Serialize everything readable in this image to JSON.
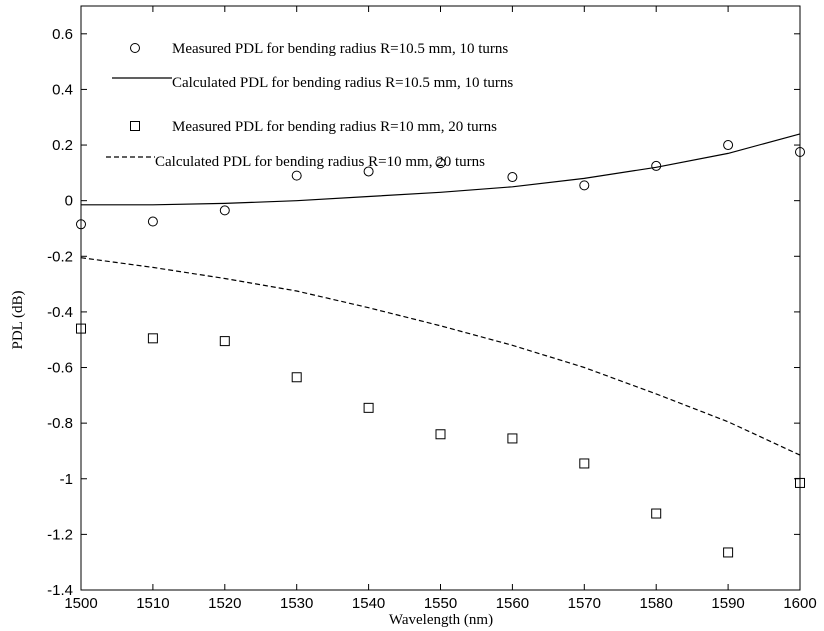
{
  "chart_data": {
    "type": "line",
    "xlabel": "Wavelength (nm)",
    "ylabel": "PDL (dB)",
    "xlim": [
      1500,
      1600
    ],
    "ylim": [
      -1.4,
      0.7
    ],
    "xticks": [
      1500,
      1510,
      1520,
      1530,
      1540,
      1550,
      1560,
      1570,
      1580,
      1590,
      1600
    ],
    "yticks": [
      -1.4,
      -1.2,
      -1,
      -0.8,
      -0.6,
      -0.4,
      -0.2,
      0,
      0.2,
      0.4,
      0.6
    ],
    "ytick_labels": [
      "-1.4",
      "-1.2",
      "-1",
      "-0.8",
      "-0.6",
      "-0.4",
      "-0.2",
      "0",
      "0.2",
      "0.4",
      "0.6"
    ],
    "grid": false,
    "legend_position": "top-left",
    "series": [
      {
        "name": "Measured PDL for bending radius R=10.5 mm, 10 turns",
        "style": "circle-markers",
        "x": [
          1500,
          1510,
          1520,
          1530,
          1540,
          1550,
          1560,
          1570,
          1580,
          1590,
          1600
        ],
        "y": [
          -0.085,
          -0.075,
          -0.035,
          0.09,
          0.105,
          0.135,
          0.085,
          0.055,
          0.125,
          0.2,
          0.175
        ]
      },
      {
        "name": "Calculated PDL for bending radius R=10.5 mm, 10 turns",
        "style": "solid-line",
        "x": [
          1500,
          1510,
          1520,
          1530,
          1540,
          1550,
          1560,
          1570,
          1580,
          1590,
          1600
        ],
        "y": [
          -0.015,
          -0.015,
          -0.01,
          0.0,
          0.015,
          0.03,
          0.05,
          0.08,
          0.12,
          0.17,
          0.24
        ]
      },
      {
        "name": "Measured PDL for bending radius R=10 mm, 20 turns",
        "style": "square-markers",
        "x": [
          1500,
          1510,
          1520,
          1530,
          1540,
          1550,
          1560,
          1570,
          1580,
          1590,
          1600
        ],
        "y": [
          -0.46,
          -0.495,
          -0.505,
          -0.635,
          -0.745,
          -0.84,
          -0.855,
          -0.945,
          -1.125,
          -1.265,
          -1.015
        ]
      },
      {
        "name": "Calculated PDL for bending radius R=10 mm, 20 turns",
        "style": "dashed-line",
        "x": [
          1500,
          1510,
          1520,
          1530,
          1540,
          1550,
          1560,
          1570,
          1580,
          1590,
          1600
        ],
        "y": [
          -0.205,
          -0.24,
          -0.28,
          -0.325,
          -0.385,
          -0.45,
          -0.52,
          -0.6,
          -0.695,
          -0.795,
          -0.915
        ]
      }
    ]
  }
}
